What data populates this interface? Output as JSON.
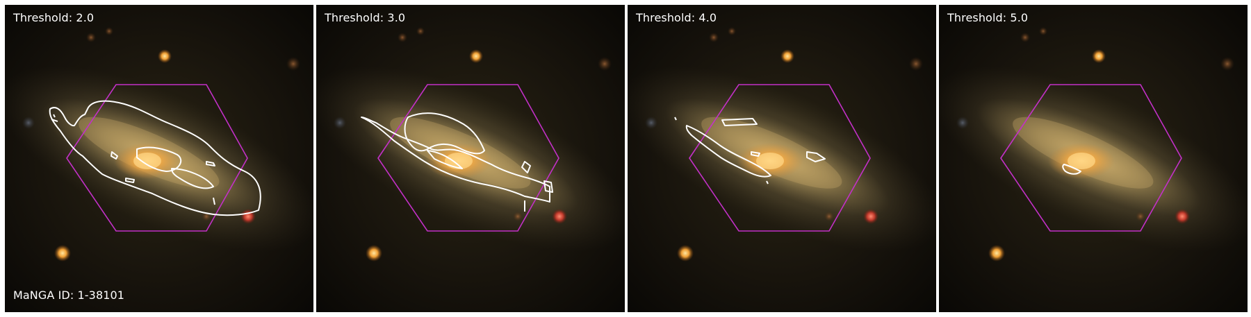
{
  "figure": {
    "panels": [
      {
        "threshold_label": "Threshold: 2.0",
        "threshold": 2.0
      },
      {
        "threshold_label": "Threshold: 3.0",
        "threshold": 3.0
      },
      {
        "threshold_label": "Threshold: 4.0",
        "threshold": 4.0
      },
      {
        "threshold_label": "Threshold: 5.0",
        "threshold": 5.0
      }
    ],
    "manga_id_label": "MaNGA ID: 1-38101",
    "colors": {
      "background_dark": "#0b0906",
      "galaxy_core": "#f4b04a",
      "galaxy_disk": "#9a8457",
      "hexagon": "#c330c8",
      "contour": "#ffffff"
    }
  }
}
